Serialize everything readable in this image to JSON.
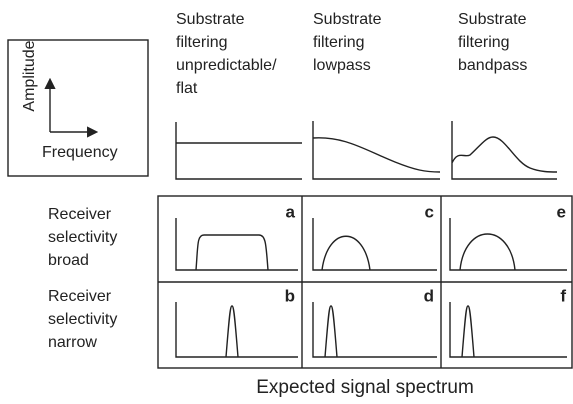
{
  "legend": {
    "y_axis": "Amplitude",
    "x_axis": "Frequency"
  },
  "columns": [
    {
      "lines": [
        "Substrate",
        "filtering",
        "unpredictable/",
        "flat"
      ]
    },
    {
      "lines": [
        "Substrate",
        "filtering",
        "lowpass"
      ]
    },
    {
      "lines": [
        "Substrate",
        "filtering",
        "bandpass"
      ]
    }
  ],
  "rows": [
    {
      "lines": [
        "Receiver",
        "selectivity",
        "broad"
      ],
      "cells": [
        "a",
        "c",
        "e"
      ]
    },
    {
      "lines": [
        "Receiver",
        "selectivity",
        "narrow"
      ],
      "cells": [
        "b",
        "d",
        "f"
      ]
    }
  ],
  "caption": "Expected signal spectrum"
}
